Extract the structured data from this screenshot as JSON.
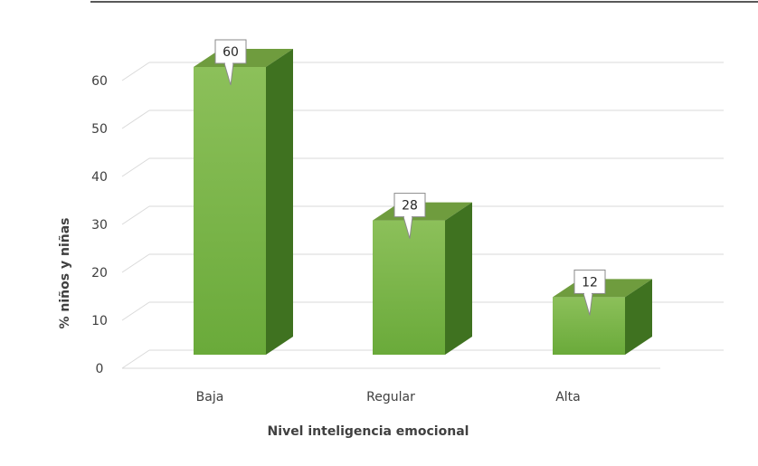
{
  "chart_data": {
    "type": "bar",
    "categories": [
      "Baja",
      "Regular",
      "Alta"
    ],
    "values": [
      60,
      28,
      12
    ],
    "data_labels": [
      "60",
      "28",
      "12"
    ],
    "xlabel": "Nivel inteligencia emocional",
    "ylabel": "% niños y niñas",
    "ylim": [
      0,
      60
    ],
    "yticks": [
      "0",
      "10",
      "20",
      "30",
      "40",
      "50",
      "60"
    ],
    "grid": true,
    "style": "3d-column",
    "colors": {
      "bar_front": "#6aaa3a",
      "bar_front_light": "#8cc05a",
      "bar_top": "#6f9c3e",
      "bar_side": "#3f7220",
      "grid": "#d9d9d9",
      "axis_text": "#404040",
      "label_bg": "#ffffff",
      "label_border": "#8a8a8a"
    }
  }
}
